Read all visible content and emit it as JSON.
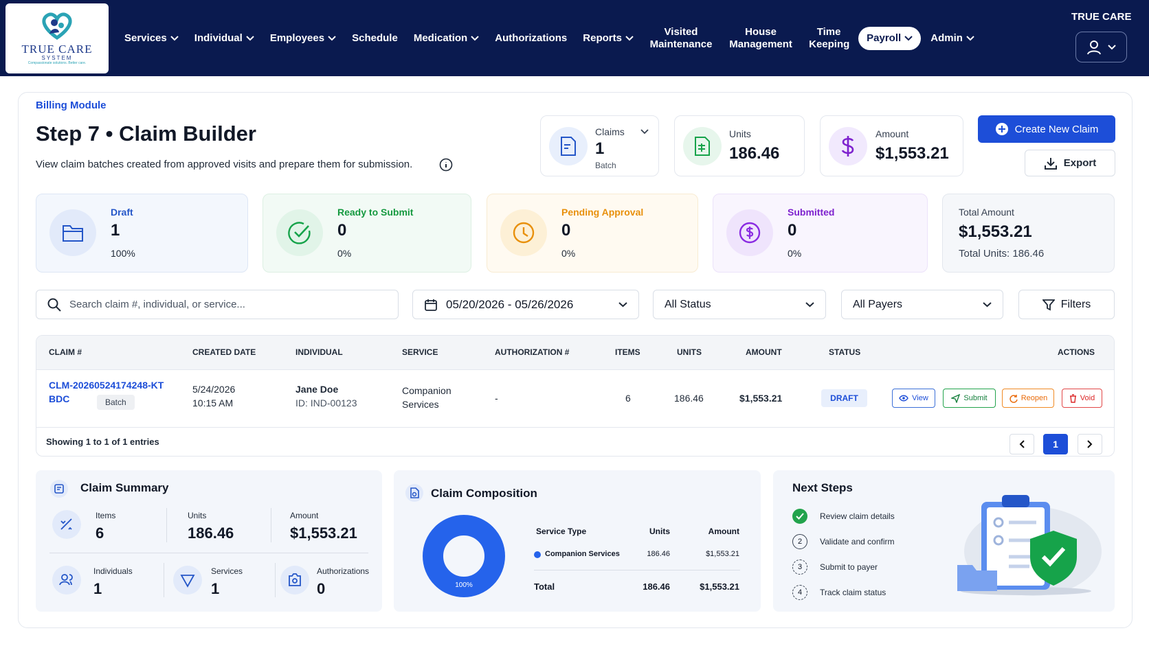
{
  "header": {
    "logo": {
      "title": "TRUE CARE",
      "subtitle": "SYSTEM",
      "tagline": "Compassionate solutions. Better care."
    },
    "nav": [
      "Services",
      "Individual",
      "Employees",
      "Schedule",
      "Medication",
      "Authorizations",
      "Reports",
      "Visited Maintenance",
      "House Management",
      "Time Keeping",
      "Payroll",
      "Admin"
    ],
    "org": "TRUE CARE"
  },
  "page": {
    "breadcrumb": "Billing Module",
    "title": "Step 7 • Claim Builder",
    "description": "View claim batches created from approved visits and prepare them for submission."
  },
  "stats": [
    {
      "label": "Claims",
      "value": "1",
      "sub": "Batch"
    },
    {
      "label": "Units",
      "value": "186.46"
    },
    {
      "label": "Amount",
      "value": "$1,553.21"
    }
  ],
  "actions": [
    "Create New Claim",
    "Export"
  ],
  "status_cards": [
    {
      "label": "Draft",
      "value": "1",
      "percent": "100%"
    },
    {
      "label": "Ready to Submit",
      "value": "0",
      "percent": "0%"
    },
    {
      "label": "Pending Approval",
      "value": "0",
      "percent": "0%"
    },
    {
      "label": "Submitted",
      "value": "0",
      "percent": "0%"
    }
  ],
  "total_card": {
    "label": "Total Amount",
    "value": "$1,553.21",
    "sub": "Total Units: 186.46"
  },
  "filters": {
    "search": "Search claim #, individual, or service...",
    "date_range": "05/20/2026 - 05/26/2026",
    "status": "All Status",
    "payer": "All Payers",
    "button": "Filters"
  },
  "table": {
    "columns": [
      "CLAIM #",
      "CREATED DATE",
      "INDIVIDUAL",
      "SERVICE",
      "AUTHORIZATION #",
      "ITEMS",
      "UNITS",
      "AMOUNT",
      "STATUS",
      "ACTIONS"
    ],
    "rows": [
      {
        "claim": "CLM-20260524174248-KTBDC",
        "tag": "Batch",
        "date": "5/24/2026",
        "time": "10:15 AM",
        "individual": "Jane Doe",
        "individual_id": "ID: IND-00123",
        "service": "Companion Services",
        "authorization": "-",
        "items": "6",
        "units": "186.46",
        "amount": "$1,553.21",
        "status": "DRAFT",
        "actions": [
          "View",
          "Submit",
          "Reopen",
          "Void"
        ]
      }
    ],
    "footer": "Showing 1 to 1 of 1 entries",
    "page": "1"
  },
  "summary": {
    "title": "Claim Summary",
    "items": [
      {
        "label": "Items",
        "value": "6"
      },
      {
        "label": "Units",
        "value": "186.46"
      },
      {
        "label": "Amount",
        "value": "$1,553.21"
      },
      {
        "label": "Individuals",
        "value": "1"
      },
      {
        "label": "Services",
        "value": "1"
      },
      {
        "label": "Authorizations",
        "value": "0"
      }
    ]
  },
  "composition": {
    "title": "Claim Composition",
    "donut": {
      "values": [
        100
      ],
      "value_labels": [
        "100%"
      ]
    },
    "columns": [
      "Service Type",
      "Units",
      "Amount"
    ],
    "rows": [
      [
        "Companion Services",
        "186.46",
        "$1,553.21"
      ]
    ],
    "total": [
      "Total",
      "186.46",
      "$1,553.21"
    ]
  },
  "next_steps": {
    "title": "Next Steps",
    "steps": [
      {
        "number": null,
        "label": "Review claim details"
      },
      {
        "number": "2",
        "label": "Validate and confirm"
      },
      {
        "number": "3",
        "label": "Submit to payer"
      },
      {
        "number": "4",
        "label": "Track claim status"
      }
    ]
  }
}
